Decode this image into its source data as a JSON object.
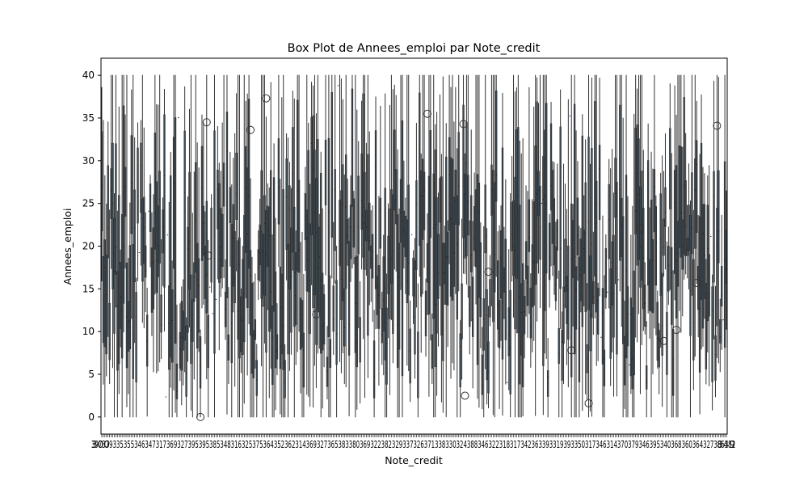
{
  "chart_data": {
    "type": "box",
    "title": "Box Plot de Annees_emploi par Note_credit",
    "xlabel": "Note_credit",
    "ylabel": "Annees_emploi",
    "ylim": [
      -2,
      42
    ],
    "yticks": [
      0,
      5,
      10,
      15,
      20,
      25,
      30,
      35,
      40
    ],
    "x_tick_first": "300",
    "x_tick_last": "849",
    "box_color": "#3d4f5c",
    "outliers": [
      {
        "x_index": 63,
        "y": 0.0
      },
      {
        "x_index": 67,
        "y": 34.5
      },
      {
        "x_index": 68,
        "y": 18.9
      },
      {
        "x_index": 95,
        "y": 33.6
      },
      {
        "x_index": 105,
        "y": 37.3
      },
      {
        "x_index": 137,
        "y": 12.0
      },
      {
        "x_index": 208,
        "y": 35.5
      },
      {
        "x_index": 231,
        "y": 34.3
      },
      {
        "x_index": 232,
        "y": 2.5
      },
      {
        "x_index": 247,
        "y": 17.0
      },
      {
        "x_index": 300,
        "y": 7.8
      },
      {
        "x_index": 311,
        "y": 1.6
      },
      {
        "x_index": 344,
        "y": 22.1
      },
      {
        "x_index": 359,
        "y": 8.9
      },
      {
        "x_index": 367,
        "y": 10.2
      },
      {
        "x_index": 380,
        "y": 15.7
      },
      {
        "x_index": 393,
        "y": 34.1
      }
    ]
  }
}
